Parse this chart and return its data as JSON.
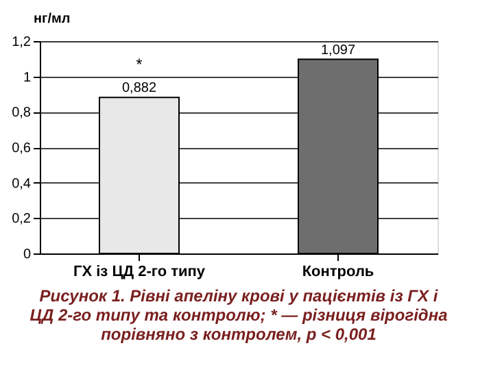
{
  "chart_data": {
    "type": "bar",
    "categories": [
      "ГХ із ЦД 2-го типу",
      "Контроль"
    ],
    "values": [
      0.882,
      1.097
    ],
    "colors": [
      "#e8e8e8",
      "#6e6e6e"
    ],
    "value_labels": [
      "0,882",
      "1,097"
    ],
    "ylabel": "нг/мл",
    "ylim": [
      0,
      1.2
    ],
    "yticks": [
      0,
      {
        "value": 0.2,
        "label": "0,2"
      },
      {
        "value": 0.4,
        "label": "0,4"
      },
      {
        "value": 0.6,
        "label": "0,6"
      },
      {
        "value": 0.8,
        "label": "0,8"
      },
      1,
      {
        "value": 1.2,
        "label": "1,2"
      }
    ],
    "grid": "y",
    "annotations": [
      "*",
      "Рисунок 1. Рівні апеліну крові у пацієнтів із ГХ і ЦД 2-го типу та контролю; * — різниця вірогідна порівняно з контролем, p < 0,001"
    ]
  }
}
